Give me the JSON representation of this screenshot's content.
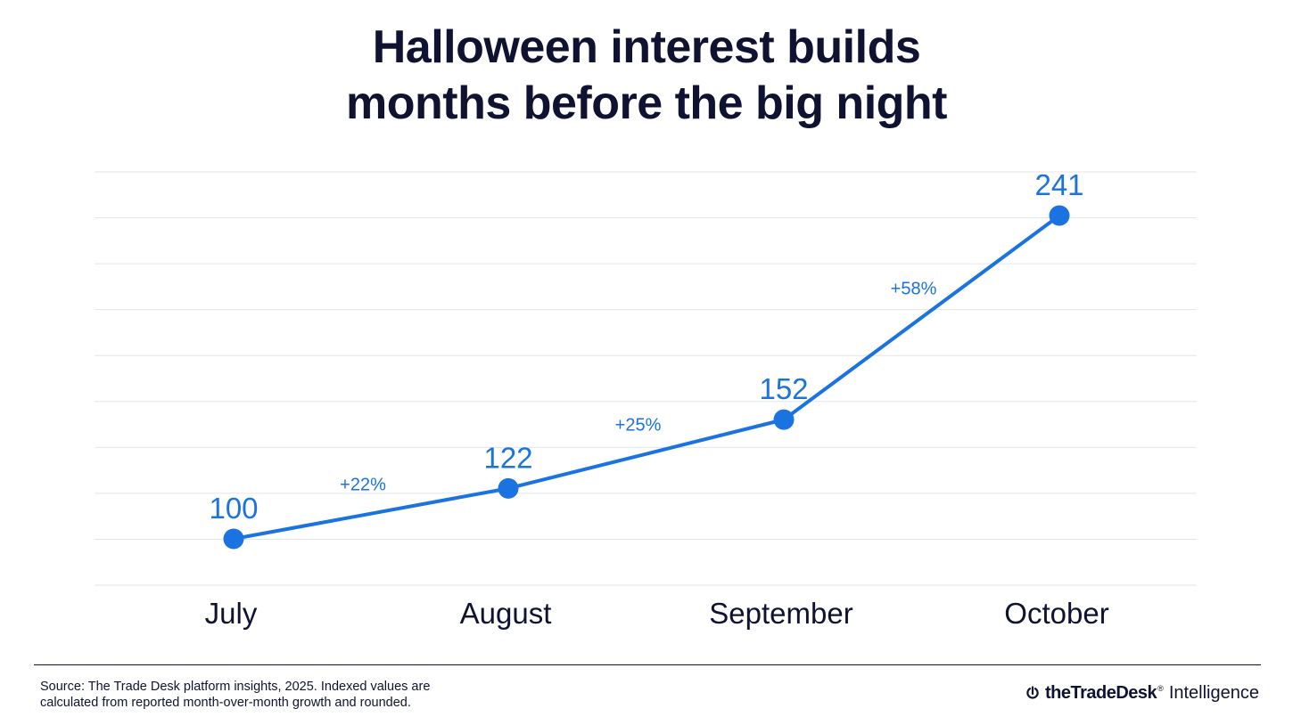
{
  "title_lines": [
    "Halloween interest builds",
    "months before the big night"
  ],
  "colors": {
    "line": "#1a73e0",
    "text": "#0f1331",
    "grid": "#e3e5ea"
  },
  "chart_data": {
    "type": "line",
    "title": "Halloween interest builds months before the big night",
    "categories": [
      "July",
      "August",
      "September",
      "October"
    ],
    "series": [
      {
        "values": [
          100,
          122,
          152,
          241
        ]
      }
    ],
    "data_labels": [
      "100",
      "122",
      "152",
      "241"
    ],
    "growth_labels": [
      "+22%",
      "+25%",
      "+58%"
    ],
    "ylim": [
      90,
      270
    ],
    "grid": true,
    "gridline_count": 10
  },
  "footer": {
    "source_line1": "Source: The Trade Desk platform insights, 2025. Indexed values are",
    "source_line2": "calculated from reported month-over-month growth and rounded.",
    "brand_name": "theTradeDesk",
    "brand_tm": "®",
    "brand_suffix": "Intelligence",
    "brand_icon": "trade-desk-logo-icon"
  }
}
